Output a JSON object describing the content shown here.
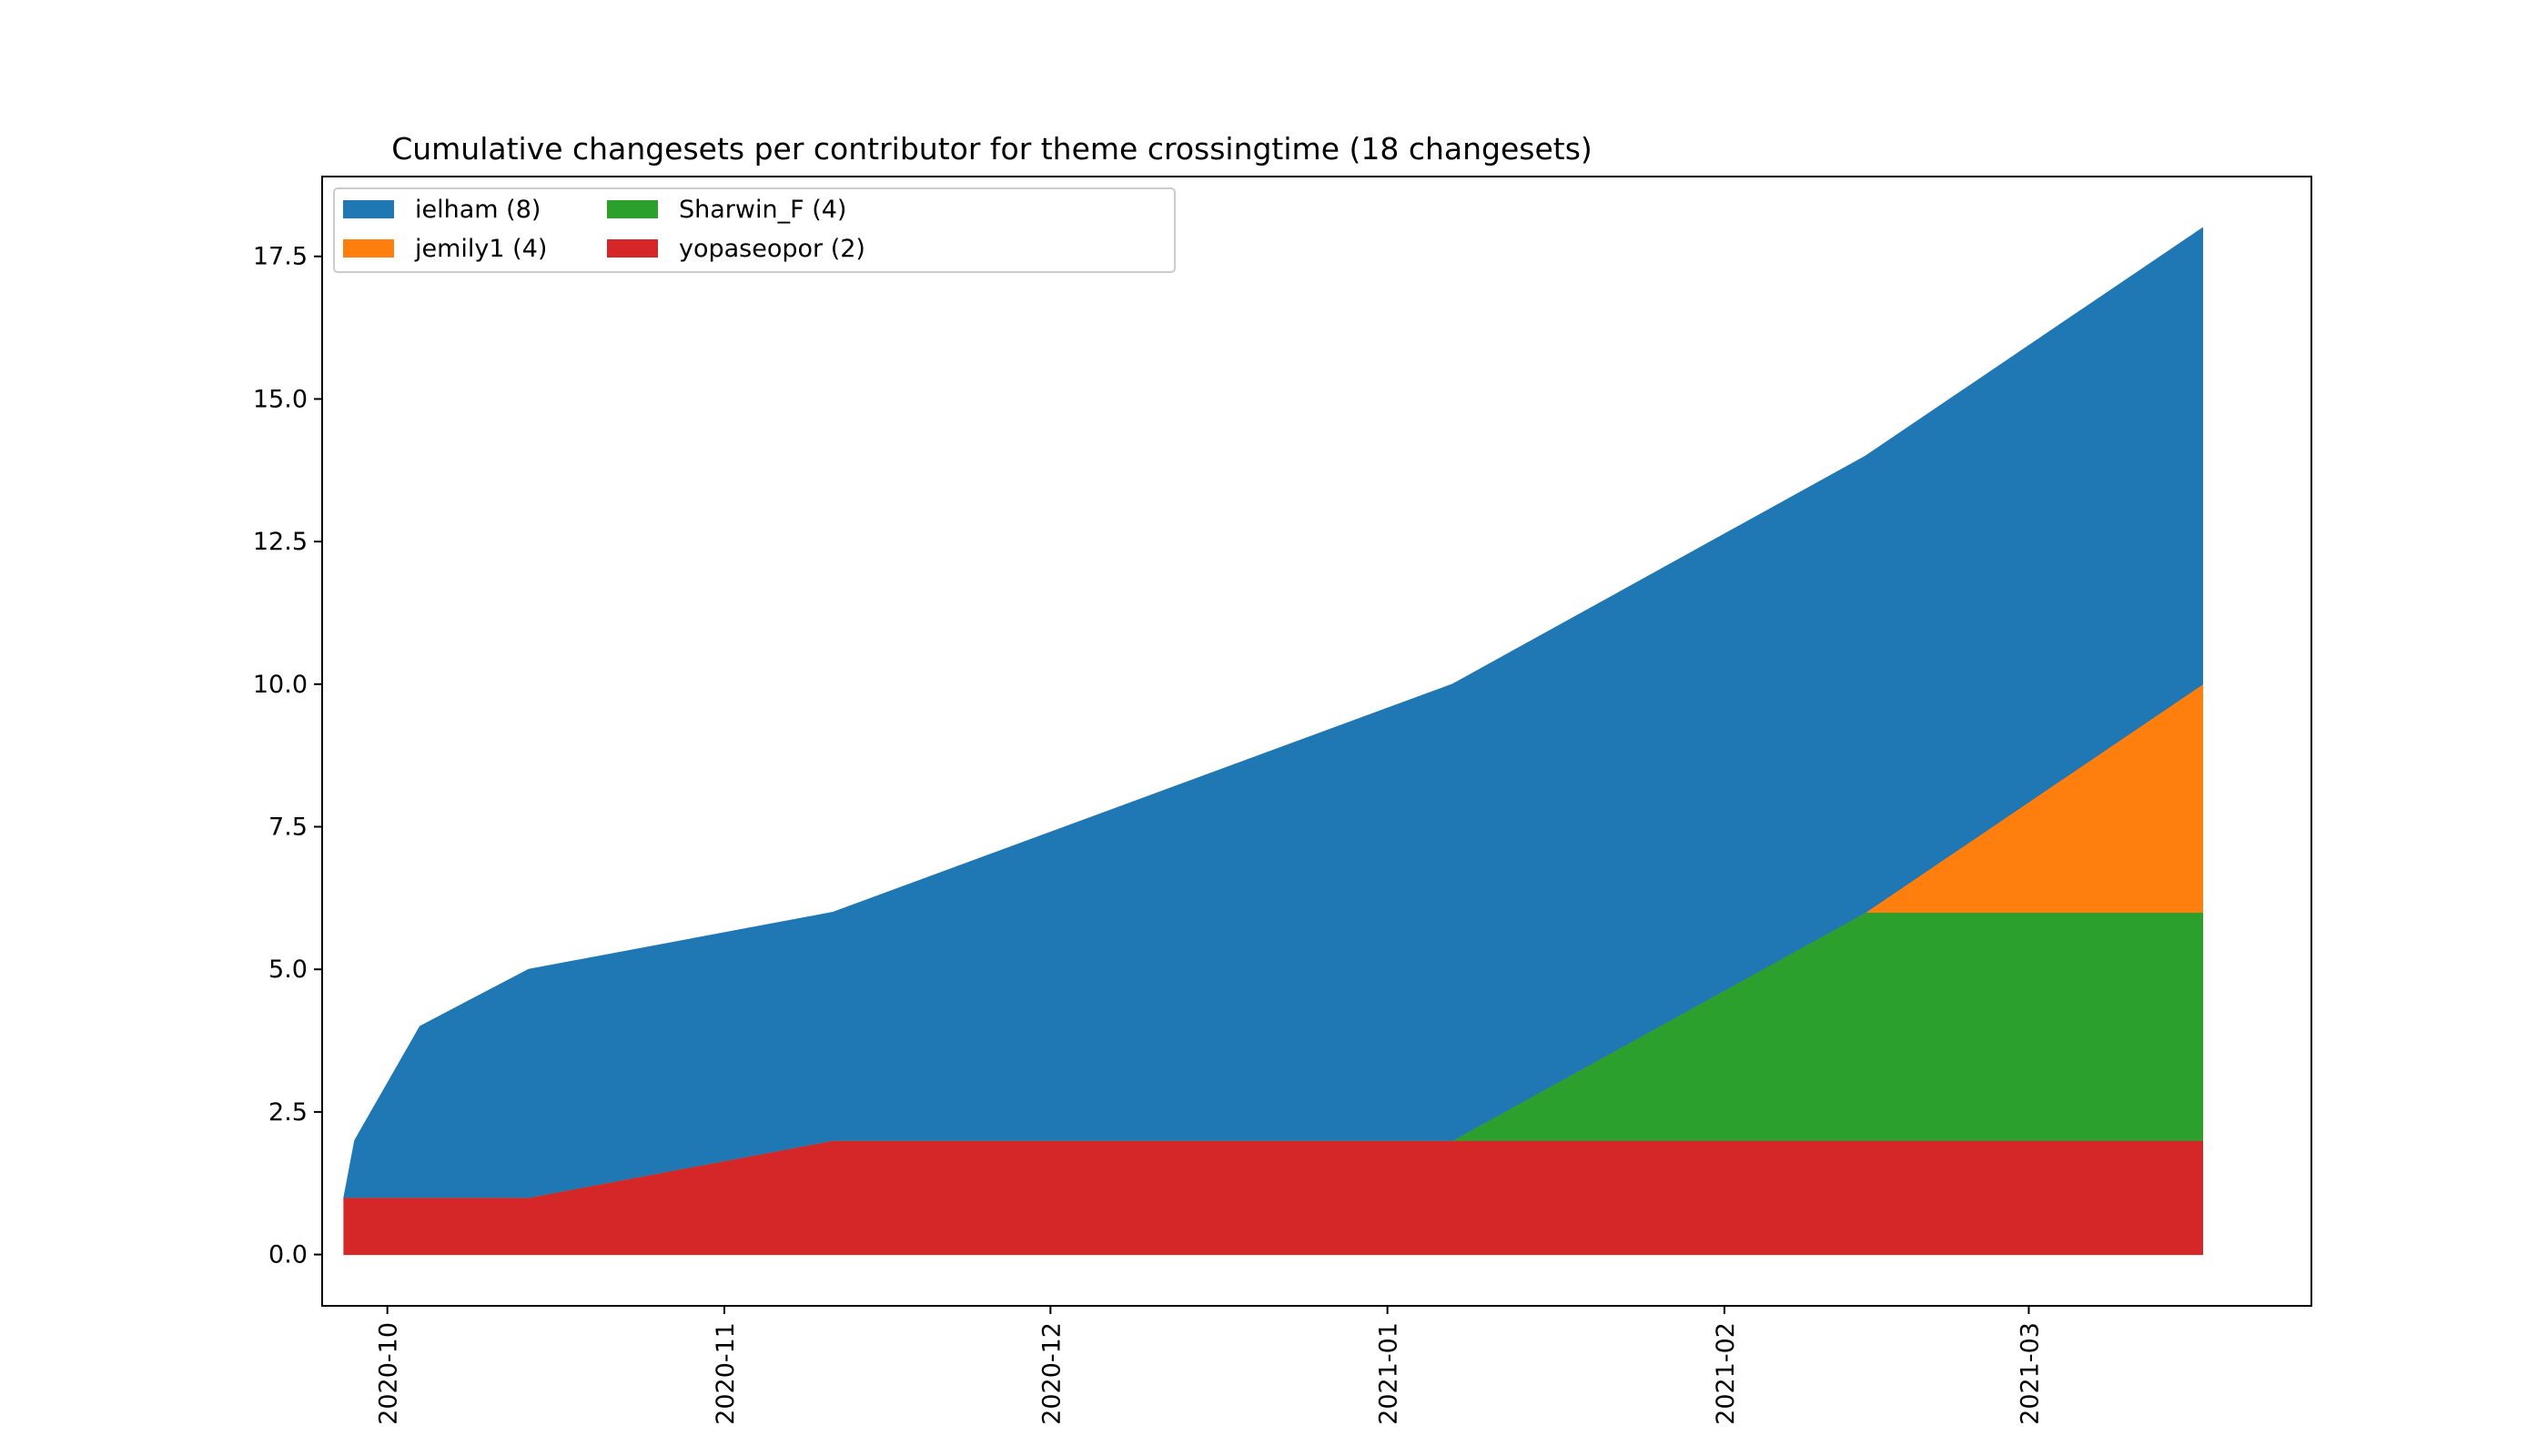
{
  "chart_data": {
    "type": "area",
    "stacked": true,
    "title": "Cumulative changesets per contributor for theme crossingtime (18 changesets)",
    "xlabel": "",
    "ylabel": "",
    "xlim": [
      "2020-09-25",
      "2021-03-27"
    ],
    "ylim": [
      -0.9,
      18.9
    ],
    "grid": false,
    "legend_placement": "top-left",
    "legend_columns": 3,
    "x": [
      "2020-09-27",
      "2020-09-28",
      "2020-10-04",
      "2020-10-14",
      "2020-11-11",
      "2021-01-07",
      "2021-02-14",
      "2021-03-17"
    ],
    "x_ticks": [
      "2020-10",
      "2020-11",
      "2020-12",
      "2021-01",
      "2021-02",
      "2021-03"
    ],
    "y_ticks": [
      0.0,
      2.5,
      5.0,
      7.5,
      10.0,
      12.5,
      15.0,
      17.5
    ],
    "y_tick_labels": [
      "0.0",
      "2.5",
      "5.0",
      "7.5",
      "10.0",
      "12.5",
      "15.0",
      "17.5"
    ],
    "series": [
      {
        "name": "yopaseopor",
        "legend_label": "yopaseopor (2)",
        "color": "#d62728",
        "values": [
          1,
          1,
          1,
          1,
          2,
          2,
          2,
          2
        ]
      },
      {
        "name": "Sharwin_F",
        "legend_label": "Sharwin_F (4)",
        "color": "#2ca02c",
        "values": [
          0,
          0,
          0,
          0,
          0,
          0,
          4,
          4
        ]
      },
      {
        "name": "jemily1",
        "legend_label": "jemily1 (4)",
        "color": "#ff7f0e",
        "values": [
          0,
          0,
          0,
          0,
          0,
          0,
          0,
          4
        ]
      },
      {
        "name": "ielham",
        "legend_label": "ielham (8)",
        "color": "#1f77b4",
        "values": [
          0,
          1,
          3,
          4,
          4,
          8,
          8,
          8
        ]
      }
    ],
    "legend_order": [
      "ielham",
      "jemily1",
      "Sharwin_F",
      "yopaseopor"
    ]
  }
}
